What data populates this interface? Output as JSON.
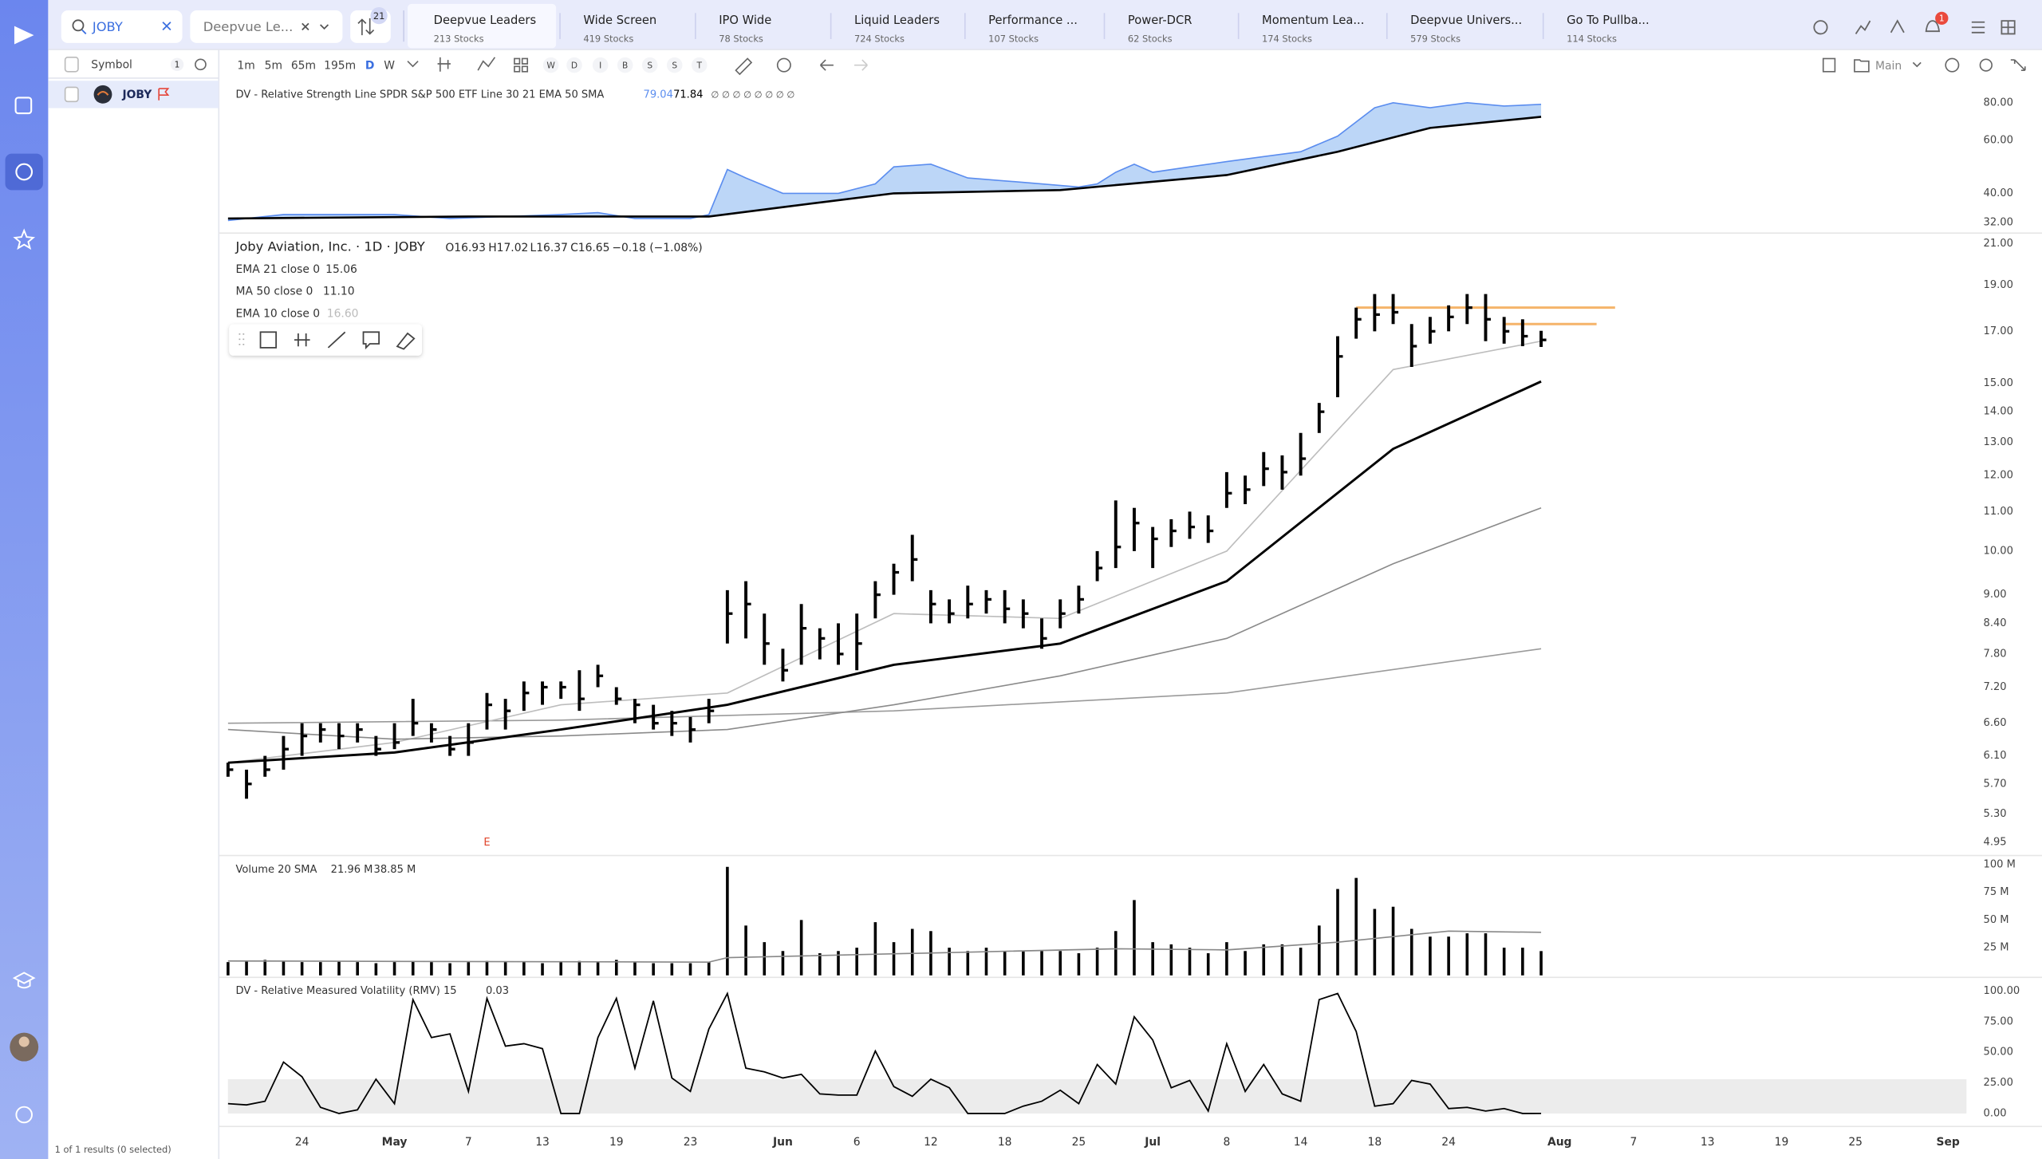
{
  "topbar": {
    "search": "JOBY",
    "watchlist": "Deepvue Le...",
    "count": "21",
    "notifications": "1"
  },
  "tabs": [
    {
      "name": "Deepvue Leaders",
      "count": "213 Stocks"
    },
    {
      "name": "Wide Screen",
      "count": "419 Stocks"
    },
    {
      "name": "IPO Wide",
      "count": "78 Stocks"
    },
    {
      "name": "Liquid Leaders",
      "count": "724 Stocks"
    },
    {
      "name": "Performance ...",
      "count": "107 Stocks"
    },
    {
      "name": "Power-DCR",
      "count": "62 Stocks"
    },
    {
      "name": "Momentum Lea...",
      "count": "174 Stocks"
    },
    {
      "name": "Deepvue Univers...",
      "count": "579 Stocks"
    },
    {
      "name": "Go To Pullba...",
      "count": "114 Stocks"
    }
  ],
  "toolbar": {
    "intervals": [
      "1m",
      "5m",
      "65m",
      "195m",
      "D",
      "W"
    ],
    "markers": [
      "W",
      "D",
      "I",
      "B",
      "S",
      "S",
      "T"
    ],
    "layout": "Main"
  },
  "sidebar": {
    "column": "Symbol",
    "count": "1",
    "symbol": "JOBY",
    "footer": "1 of 1 results (0 selected)"
  },
  "quote": {
    "name": "Joby Aviation, Inc. · 1D · JOBY",
    "open": "O16.93",
    "high": "H17.02",
    "low": "L16.37",
    "close": "C16.65",
    "change": "−0.18 (−1.08%)"
  },
  "chart_data": [
    {
      "type": "area",
      "title": "DV - Relative Strength Line SPDR S&P 500 ETF Line 30 21 EMA 50 SMA",
      "extra": "∅ ∅ ∅ ∅ ∅ ∅ ∅ ∅",
      "log": true,
      "ylim": [
        29.8,
        94.7
      ],
      "yticks": [
        {
          "value": 80,
          "label": "80.00"
        },
        {
          "value": 60,
          "label": "60.00"
        },
        {
          "value": 40,
          "label": "40.00"
        },
        {
          "value": 32,
          "label": "32.00"
        }
      ],
      "series": [
        {
          "color": "#5b8def",
          "fill": "#bcd6f7",
          "x": [
            0,
            3,
            6,
            9,
            12,
            15,
            18,
            20,
            22,
            25,
            26,
            27,
            28,
            30,
            33,
            35,
            36,
            38,
            40,
            42,
            44,
            46,
            47,
            48,
            49,
            50,
            52,
            54,
            56,
            58,
            60,
            62,
            63,
            65,
            67,
            69,
            71
          ],
          "values": [
            32.5,
            34,
            34,
            34,
            33,
            33.5,
            34,
            34.5,
            33,
            33,
            34,
            48,
            45,
            40,
            40,
            43,
            49,
            50,
            45,
            44,
            43,
            42,
            43,
            47,
            50,
            47,
            49,
            51,
            53,
            55,
            62,
            77,
            80,
            77,
            80,
            78,
            79.04
          ]
        },
        {
          "color": "#000000",
          "x": [
            0,
            13,
            26,
            30,
            36,
            45,
            54,
            60,
            65,
            71
          ],
          "values": [
            33,
            33.5,
            33.5,
            36,
            40,
            41,
            46,
            55,
            66,
            71.84
          ]
        }
      ]
    },
    {
      "type": "ohlc",
      "log": true,
      "ylim": [
        4.81,
        21.48
      ],
      "xlim": [
        -0.5,
        94
      ],
      "yticks": [
        {
          "value": 21,
          "label": "21.00"
        },
        {
          "value": 19,
          "label": "19.00"
        },
        {
          "value": 17,
          "label": "17.00"
        },
        {
          "value": 15,
          "label": "15.00"
        },
        {
          "value": 14,
          "label": "14.00"
        },
        {
          "value": 13,
          "label": "13.00"
        },
        {
          "value": 12,
          "label": "12.00"
        },
        {
          "value": 11,
          "label": "11.00"
        },
        {
          "value": 10,
          "label": "10.00"
        },
        {
          "value": 9,
          "label": "9.00"
        },
        {
          "value": 8.4,
          "label": "8.40"
        },
        {
          "value": 7.8,
          "label": "7.80"
        },
        {
          "value": 7.2,
          "label": "7.20"
        },
        {
          "value": 6.6,
          "label": "6.60"
        },
        {
          "value": 6.1,
          "label": "6.10"
        },
        {
          "value": 5.7,
          "label": "5.70"
        },
        {
          "value": 5.3,
          "label": "5.30"
        },
        {
          "value": 4.95,
          "label": "4.95"
        }
      ],
      "xticks": [
        {
          "value": 4,
          "label": "24"
        },
        {
          "value": 9,
          "label": "May"
        },
        {
          "value": 13,
          "label": "7"
        },
        {
          "value": 17,
          "label": "13"
        },
        {
          "value": 21,
          "label": "19"
        },
        {
          "value": 25,
          "label": "23"
        },
        {
          "value": 30,
          "label": "Jun"
        },
        {
          "value": 34,
          "label": "6"
        },
        {
          "value": 38,
          "label": "12"
        },
        {
          "value": 42,
          "label": "18"
        },
        {
          "value": 46,
          "label": "25"
        },
        {
          "value": 50,
          "label": "Jul"
        },
        {
          "value": 54,
          "label": "8"
        },
        {
          "value": 58,
          "label": "14"
        },
        {
          "value": 62,
          "label": "18"
        },
        {
          "value": 66,
          "label": "24"
        },
        {
          "value": 72,
          "label": "Aug"
        },
        {
          "value": 76,
          "label": "7"
        },
        {
          "value": 80,
          "label": "13"
        },
        {
          "value": 84,
          "label": "19"
        },
        {
          "value": 88,
          "label": "25"
        },
        {
          "value": 93,
          "label": "Sep"
        }
      ],
      "color": "#000000",
      "high": [
        6.0,
        5.9,
        6.1,
        6.4,
        6.6,
        6.6,
        6.6,
        6.6,
        6.4,
        6.6,
        7.0,
        6.6,
        6.4,
        6.6,
        7.1,
        7.0,
        7.3,
        7.3,
        7.3,
        7.5,
        7.6,
        7.2,
        7.0,
        6.9,
        6.8,
        6.7,
        7.0,
        9.1,
        9.3,
        8.6,
        7.9,
        8.8,
        8.3,
        8.4,
        8.6,
        9.3,
        9.7,
        10.4,
        9.1,
        8.9,
        9.2,
        9.1,
        9.1,
        8.9,
        8.5,
        8.9,
        9.2,
        10.0,
        11.3,
        11.1,
        10.6,
        10.8,
        11.0,
        10.9,
        12.1,
        12.0,
        12.7,
        12.6,
        13.3,
        14.3,
        16.8,
        18.0,
        18.6,
        18.6,
        17.3,
        17.6,
        18.1,
        18.6,
        18.6,
        17.6,
        17.5,
        17.02
      ],
      "low": [
        5.8,
        5.5,
        5.8,
        5.9,
        6.1,
        6.3,
        6.2,
        6.3,
        6.1,
        6.2,
        6.4,
        6.3,
        6.1,
        6.1,
        6.5,
        6.5,
        6.8,
        6.9,
        7.0,
        6.8,
        7.2,
        6.9,
        6.6,
        6.5,
        6.4,
        6.3,
        6.6,
        8.0,
        8.1,
        7.6,
        7.3,
        7.6,
        7.7,
        7.6,
        7.5,
        8.5,
        9.0,
        9.3,
        8.4,
        8.4,
        8.5,
        8.6,
        8.4,
        8.3,
        7.9,
        8.3,
        8.6,
        9.3,
        9.6,
        10.0,
        9.6,
        10.1,
        10.3,
        10.2,
        11.1,
        11.2,
        11.7,
        11.6,
        12.0,
        13.3,
        14.5,
        16.7,
        17.0,
        17.3,
        15.6,
        16.5,
        17.0,
        17.3,
        16.6,
        16.5,
        16.4,
        16.37
      ],
      "close": [
        5.9,
        5.7,
        5.9,
        6.2,
        6.4,
        6.5,
        6.4,
        6.5,
        6.2,
        6.3,
        6.6,
        6.5,
        6.2,
        6.3,
        6.9,
        6.8,
        7.1,
        7.2,
        7.2,
        7.0,
        7.4,
        7.0,
        6.9,
        6.6,
        6.6,
        6.5,
        6.8,
        8.6,
        8.8,
        8.0,
        7.5,
        8.3,
        8.1,
        7.8,
        8.0,
        9.0,
        9.5,
        9.8,
        8.8,
        8.6,
        8.8,
        8.9,
        8.7,
        8.6,
        8.1,
        8.6,
        8.9,
        9.6,
        10.1,
        10.7,
        10.3,
        10.5,
        10.6,
        10.5,
        11.5,
        11.6,
        12.2,
        12.1,
        12.5,
        14.0,
        16.0,
        17.5,
        17.7,
        17.8,
        16.4,
        17.0,
        17.6,
        18.0,
        17.5,
        17.0,
        16.8,
        16.65
      ],
      "lines": [
        {
          "name": "EMA 21 close 0",
          "color": "#000000",
          "x": [
            0,
            9,
            18,
            27,
            36,
            45,
            54,
            63,
            71
          ],
          "values": [
            6.0,
            6.15,
            6.5,
            6.9,
            7.6,
            8.0,
            9.3,
            12.8,
            15.06
          ]
        },
        {
          "name": "MA 50 close 0",
          "color": "#8a8a8a",
          "x": [
            0,
            9,
            18,
            27,
            36,
            45,
            54,
            63,
            71
          ],
          "values": [
            6.5,
            6.35,
            6.4,
            6.5,
            6.9,
            7.4,
            8.1,
            9.7,
            11.1
          ],
          "value_labels": [
            null,
            null,
            null,
            null,
            null,
            null,
            null,
            null,
            "11.10"
          ]
        },
        {
          "name": "EMA 10 close 0",
          "color": "#bdbdbd",
          "x": [
            0,
            9,
            18,
            27,
            36,
            45,
            54,
            63,
            71
          ],
          "values": [
            6.0,
            6.3,
            6.9,
            7.1,
            8.6,
            8.5,
            10.0,
            15.5,
            16.6
          ],
          "value_labels": [
            null,
            null,
            null,
            null,
            null,
            null,
            null,
            null,
            "16.60"
          ]
        },
        {
          "color": "#9a9a9a",
          "x": [
            0,
            18,
            36,
            54,
            71
          ],
          "values": [
            6.6,
            6.65,
            6.8,
            7.1,
            7.9
          ]
        }
      ],
      "levels": [
        {
          "value": 18.0,
          "x": [
            61,
            75
          ],
          "color": "#f5b46a"
        },
        {
          "value": 17.3,
          "x": [
            69,
            74
          ],
          "color": "#f5b46a"
        }
      ],
      "earnings": {
        "label": "E",
        "x": 14,
        "color": "#e0452b"
      }
    },
    {
      "type": "bar",
      "title": "Volume 20 SMA",
      "ylim": [
        0,
        107000000
      ],
      "yticks": [
        {
          "value": 100000000,
          "label": "100 M"
        },
        {
          "value": 75000000,
          "label": "75 M"
        },
        {
          "value": 50000000,
          "label": "50 M"
        },
        {
          "value": 25000000,
          "label": "25 M"
        }
      ],
      "series": [
        {
          "color": "#000000",
          "values": [
            12000000,
            13000000,
            14000000,
            13000000,
            12000000,
            12000000,
            13000000,
            12000000,
            11000000,
            12000000,
            13000000,
            12000000,
            11000000,
            12000000,
            13000000,
            12000000,
            12000000,
            11000000,
            12000000,
            13000000,
            12000000,
            14000000,
            12000000,
            11000000,
            11000000,
            11000000,
            12000000,
            98000000,
            45000000,
            30000000,
            22000000,
            50000000,
            20000000,
            22000000,
            25000000,
            48000000,
            30000000,
            42000000,
            40000000,
            25000000,
            22000000,
            25000000,
            22000000,
            22000000,
            22000000,
            22000000,
            20000000,
            25000000,
            40000000,
            68000000,
            30000000,
            28000000,
            25000000,
            20000000,
            30000000,
            22000000,
            28000000,
            28000000,
            25000000,
            45000000,
            78000000,
            88000000,
            60000000,
            62000000,
            42000000,
            35000000,
            35000000,
            38000000,
            38000000,
            25000000,
            25000000,
            21960000
          ],
          "value_labels": [
            null,
            null,
            null,
            null,
            null,
            null,
            null,
            null,
            null,
            null,
            null,
            null,
            null,
            null,
            null,
            null,
            null,
            null,
            null,
            null,
            null,
            null,
            null,
            null,
            null,
            null,
            null,
            null,
            null,
            null,
            null,
            null,
            null,
            null,
            null,
            null,
            null,
            null,
            null,
            null,
            null,
            null,
            null,
            null,
            null,
            null,
            null,
            null,
            null,
            null,
            null,
            null,
            null,
            null,
            null,
            null,
            null,
            null,
            null,
            null,
            null,
            null,
            null,
            null,
            null,
            null,
            null,
            null,
            null,
            null,
            null,
            "21.96 M"
          ]
        },
        {
          "color": "#888888",
          "x": [
            0,
            26,
            27,
            40,
            48,
            54,
            60,
            66,
            71
          ],
          "values": [
            13000000,
            12000000,
            16000000,
            21000000,
            24000000,
            23000000,
            30000000,
            40000000,
            38850000
          ],
          "value_labels": [
            null,
            null,
            null,
            null,
            null,
            null,
            null,
            null,
            "38.85 M"
          ]
        }
      ]
    },
    {
      "type": "line",
      "title": "DV - Relative Measured Volatility (RMV) 15",
      "ylim": [
        -7.4,
        109.6
      ],
      "band": [
        0,
        28
      ],
      "yticks": [
        {
          "value": 100,
          "label": "100.00"
        },
        {
          "value": 75,
          "label": "75.00"
        },
        {
          "value": 50,
          "label": "50.00"
        },
        {
          "value": 25,
          "label": "25.00"
        },
        {
          "value": 0,
          "label": "0.00"
        }
      ],
      "color": "#000000",
      "values": [
        8,
        7,
        10,
        42,
        30,
        5,
        0,
        3,
        28,
        8,
        93,
        62,
        65,
        18,
        94,
        55,
        57,
        53,
        0,
        0,
        62,
        94,
        37,
        92,
        29,
        18,
        69,
        98,
        37,
        34,
        29,
        32,
        16,
        15,
        15,
        51,
        22,
        14,
        28,
        21,
        0,
        0,
        0,
        6,
        10,
        19,
        8,
        40,
        24,
        79,
        60,
        21,
        27,
        2,
        57,
        18,
        40,
        16,
        10,
        93,
        98,
        67,
        6,
        8,
        27,
        24,
        4,
        5,
        2,
        4,
        0,
        0.03
      ]
    }
  ]
}
